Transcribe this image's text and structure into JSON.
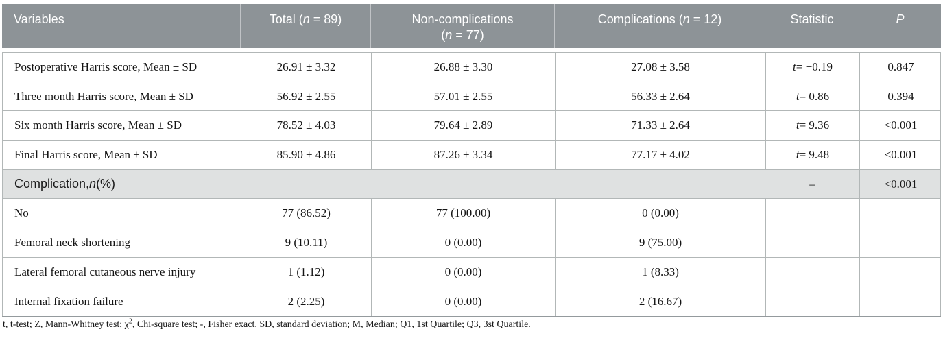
{
  "colors": {
    "header_bg": "#8d9397",
    "header_text": "#ffffff",
    "section_bg": "#dfe1e1",
    "border": "#b2b7b7",
    "bottom_border": "#949a9d",
    "body_text": "#141414"
  },
  "header": {
    "columns": [
      {
        "key": "variables",
        "label": [
          {
            "t": "Variables"
          }
        ]
      },
      {
        "key": "total",
        "label": [
          {
            "t": "Total ("
          },
          {
            "t": "n",
            "i": true
          },
          {
            "t": " = 89)"
          }
        ]
      },
      {
        "key": "non_complications",
        "label": [
          {
            "t": "Non-complications"
          },
          {
            "br": true
          },
          {
            "t": "("
          },
          {
            "t": "n",
            "i": true
          },
          {
            "t": " = 77)"
          }
        ]
      },
      {
        "key": "complications",
        "label": [
          {
            "t": "Complications ("
          },
          {
            "t": "n",
            "i": true
          },
          {
            "t": " = 12)"
          }
        ]
      },
      {
        "key": "statistic",
        "label": [
          {
            "t": "Statistic"
          }
        ]
      },
      {
        "key": "p",
        "label": [
          {
            "t": "P",
            "i": true
          }
        ]
      }
    ]
  },
  "rows": [
    {
      "type": "data",
      "cells": [
        [
          {
            "t": "Postoperative Harris score, Mean ± SD"
          }
        ],
        [
          {
            "t": "26.91 ± 3.32"
          }
        ],
        [
          {
            "t": "26.88 ± 3.30"
          }
        ],
        [
          {
            "t": "27.08 ± 3.58"
          }
        ],
        [
          {
            "t": "t",
            "i": true
          },
          {
            "t": " = −0.19"
          }
        ],
        [
          {
            "t": "0.847"
          }
        ]
      ]
    },
    {
      "type": "data",
      "cells": [
        [
          {
            "t": "Three month Harris score, Mean ± SD"
          }
        ],
        [
          {
            "t": "56.92 ± 2.55"
          }
        ],
        [
          {
            "t": "57.01 ± 2.55"
          }
        ],
        [
          {
            "t": "56.33 ± 2.64"
          }
        ],
        [
          {
            "t": "t",
            "i": true
          },
          {
            "t": " = 0.86"
          }
        ],
        [
          {
            "t": "0.394"
          }
        ]
      ]
    },
    {
      "type": "data",
      "cells": [
        [
          {
            "t": "Six month Harris score, Mean ± SD"
          }
        ],
        [
          {
            "t": "78.52 ± 4.03"
          }
        ],
        [
          {
            "t": "79.64 ± 2.89"
          }
        ],
        [
          {
            "t": "71.33 ± 2.64"
          }
        ],
        [
          {
            "t": "t",
            "i": true
          },
          {
            "t": " = 9.36"
          }
        ],
        [
          {
            "t": "<0.001"
          }
        ]
      ]
    },
    {
      "type": "data",
      "cells": [
        [
          {
            "t": "Final Harris score, Mean ± SD"
          }
        ],
        [
          {
            "t": "85.90 ± 4.86"
          }
        ],
        [
          {
            "t": "87.26 ± 3.34"
          }
        ],
        [
          {
            "t": "77.17 ± 4.02"
          }
        ],
        [
          {
            "t": "t",
            "i": true
          },
          {
            "t": " = 9.48"
          }
        ],
        [
          {
            "t": "<0.001"
          }
        ]
      ]
    },
    {
      "type": "section",
      "label": [
        {
          "t": "Complication, "
        },
        {
          "t": "n",
          "i": true
        },
        {
          "t": " (%)"
        }
      ],
      "statistic": [
        {
          "t": "–"
        }
      ],
      "p": [
        {
          "t": "<0.001"
        }
      ]
    },
    {
      "type": "data",
      "cells": [
        [
          {
            "t": "No"
          }
        ],
        [
          {
            "t": "77 (86.52)"
          }
        ],
        [
          {
            "t": "77 (100.00)"
          }
        ],
        [
          {
            "t": "0 (0.00)"
          }
        ],
        [],
        []
      ]
    },
    {
      "type": "data",
      "cells": [
        [
          {
            "t": "Femoral neck shortening"
          }
        ],
        [
          {
            "t": "9 (10.11)"
          }
        ],
        [
          {
            "t": "0 (0.00)"
          }
        ],
        [
          {
            "t": "9 (75.00)"
          }
        ],
        [],
        []
      ]
    },
    {
      "type": "data",
      "cells": [
        [
          {
            "t": "Lateral femoral cutaneous nerve injury"
          }
        ],
        [
          {
            "t": "1 (1.12)"
          }
        ],
        [
          {
            "t": "0 (0.00)"
          }
        ],
        [
          {
            "t": "1 (8.33)"
          }
        ],
        [],
        []
      ]
    },
    {
      "type": "data",
      "cells": [
        [
          {
            "t": "Internal fixation failure"
          }
        ],
        [
          {
            "t": "2 (2.25)"
          }
        ],
        [
          {
            "t": "0 (0.00)"
          }
        ],
        [
          {
            "t": "2 (16.67)"
          }
        ],
        [],
        []
      ]
    }
  ],
  "footnote": [
    {
      "t": "t, t-test; Z, Mann-Whitney test; χ"
    },
    {
      "t": "2",
      "sup": true
    },
    {
      "t": ", Chi-square test; -, Fisher exact. SD, standard deviation; M, Median; Q1, 1st Quartile; Q3, 3st Quartile."
    }
  ]
}
